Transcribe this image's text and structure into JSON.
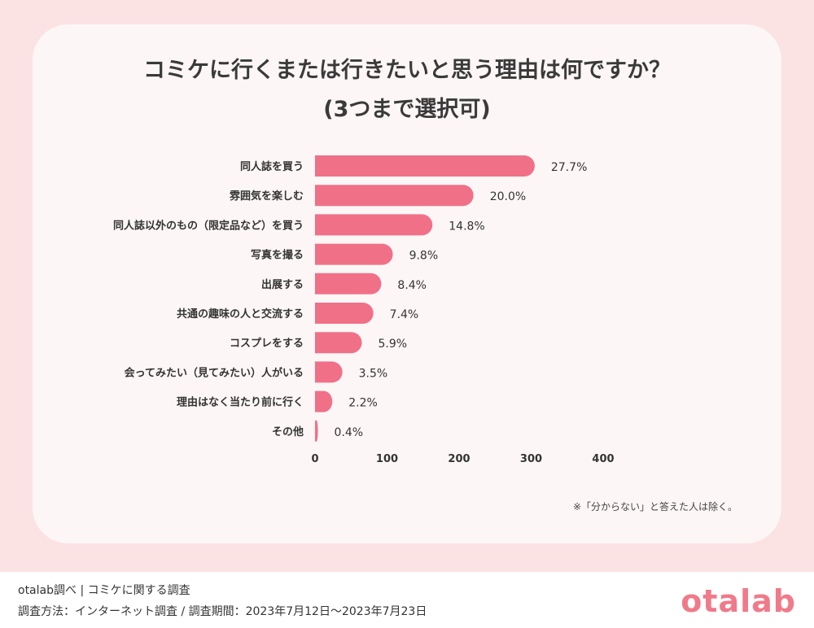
{
  "title_line1": "コミケに行くまたは行きたいと思う理由は何ですか？",
  "title_line2": "(3つまで選択可)",
  "note": "※「分からない」と答えた人は除く。",
  "footer": {
    "line1": "otalab調べ | コミケに関する調査",
    "line2": "調査方法：インターネット調査 / 調査期間：2023年7月12日〜2023年7月23日",
    "logo": "otalab"
  },
  "colors": {
    "bar": "#f07088",
    "background": "#fbe3e3",
    "card": "#fdf6f6"
  },
  "chart_data": {
    "type": "bar",
    "orientation": "horizontal",
    "title": "コミケに行くまたは行きたいと思う理由は何ですか？",
    "categories": [
      "同人誌を買う",
      "雰囲気を楽しむ",
      "同人誌以外のもの（限定品など）を買う",
      "写真を撮る",
      "出展する",
      "共通の趣味の人と交流する",
      "コスプレをする",
      "会ってみたい（見てみたい）人がいる",
      "理由はなく当たり前に行く",
      "その他"
    ],
    "values": [
      305,
      220,
      163,
      108,
      92,
      81,
      65,
      38,
      24,
      4
    ],
    "percent_labels": [
      "27.7%",
      "20.0%",
      "14.8%",
      "9.8%",
      "8.4%",
      "7.4%",
      "5.9%",
      "3.5%",
      "2.2%",
      "0.4%"
    ],
    "xlim": [
      0,
      400
    ],
    "xticks": [
      "0",
      "100",
      "200",
      "300",
      "400"
    ],
    "grid": false
  }
}
